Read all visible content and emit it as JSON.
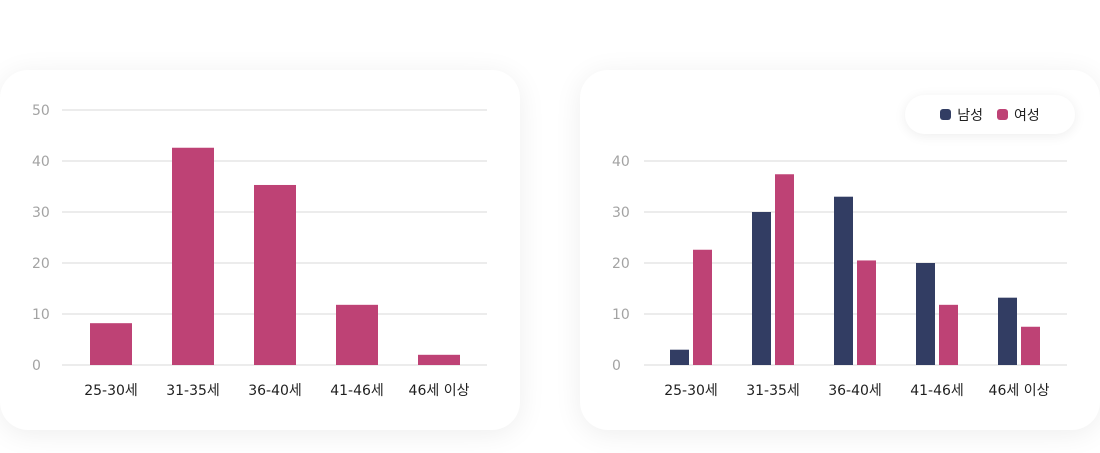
{
  "colors": {
    "male": "#323d63",
    "female": "#be4275"
  },
  "chart_data": [
    {
      "type": "bar",
      "categories": [
        "25-30세",
        "31-35세",
        "36-40세",
        "41-46세",
        "46세 이상"
      ],
      "values": [
        8.2,
        42.6,
        35.3,
        11.8,
        2.0
      ],
      "ylim": [
        0,
        50
      ],
      "yticks": [
        0,
        10,
        20,
        30,
        40,
        50
      ],
      "grid": true
    },
    {
      "type": "bar",
      "categories": [
        "25-30세",
        "31-35세",
        "36-40세",
        "41-46세",
        "46세 이상"
      ],
      "series": [
        {
          "name": "남성",
          "values": [
            3.0,
            30.0,
            33.0,
            20.0,
            13.2
          ]
        },
        {
          "name": "여성",
          "values": [
            22.6,
            37.4,
            20.5,
            11.8,
            7.5
          ]
        }
      ],
      "ylim": [
        0,
        40
      ],
      "yticks": [
        0,
        10,
        20,
        30,
        40
      ],
      "grid": true,
      "legend_position": "top-right"
    }
  ]
}
